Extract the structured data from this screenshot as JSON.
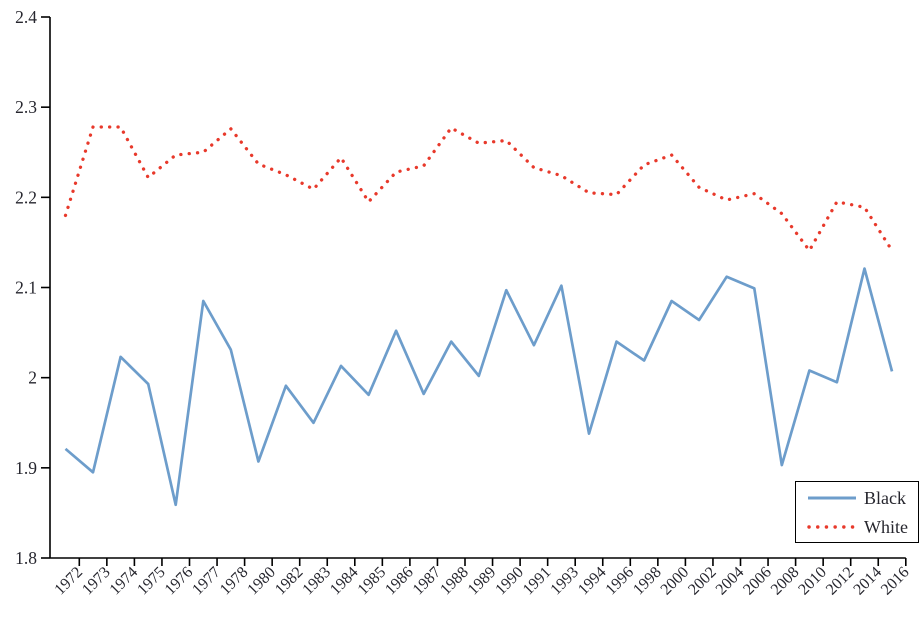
{
  "chart_data": {
    "type": "line",
    "title": "",
    "xlabel": "",
    "ylabel": "",
    "grid": false,
    "legend_position": "bottom-right",
    "x_tick_rotation": -45,
    "ylim": [
      1.8,
      2.4
    ],
    "y_ticks": [
      "1.8",
      "1.9",
      "2",
      "2.1",
      "2.2",
      "2.3",
      "2.4"
    ],
    "y_tick_values": [
      1.8,
      1.9,
      2.0,
      2.1,
      2.2,
      2.3,
      2.4
    ],
    "categories": [
      "1972",
      "1973",
      "1974",
      "1975",
      "1976",
      "1977",
      "1978",
      "1980",
      "1982",
      "1983",
      "1984",
      "1985",
      "1986",
      "1987",
      "1988",
      "1989",
      "1990",
      "1991",
      "1993",
      "1994",
      "1996",
      "1998",
      "2000",
      "2002",
      "2004",
      "2006",
      "2008",
      "2010",
      "2012",
      "2014",
      "2016"
    ],
    "series": [
      {
        "name": "Black",
        "style": "solid",
        "color": "#6d9dcb",
        "values": [
          1.921,
          1.895,
          2.023,
          1.993,
          1.859,
          2.085,
          2.031,
          1.907,
          1.991,
          1.95,
          2.013,
          1.981,
          2.052,
          1.982,
          2.04,
          2.002,
          2.097,
          2.036,
          2.102,
          1.938,
          2.04,
          2.019,
          2.085,
          2.064,
          2.112,
          2.099,
          1.903,
          2.008,
          1.995,
          2.121,
          2.007
        ]
      },
      {
        "name": "White",
        "style": "dotted",
        "color": "#e8392b",
        "values": [
          2.18,
          2.278,
          2.278,
          2.222,
          2.247,
          2.25,
          2.276,
          2.237,
          2.225,
          2.209,
          2.244,
          2.195,
          2.228,
          2.235,
          2.277,
          2.26,
          2.263,
          2.233,
          2.224,
          2.205,
          2.203,
          2.236,
          2.247,
          2.211,
          2.197,
          2.204,
          2.182,
          2.141,
          2.195,
          2.189,
          2.141
        ]
      }
    ]
  },
  "colors": {
    "axis": "#000000",
    "tick_text": "#26262e",
    "background": "#ffffff"
  }
}
